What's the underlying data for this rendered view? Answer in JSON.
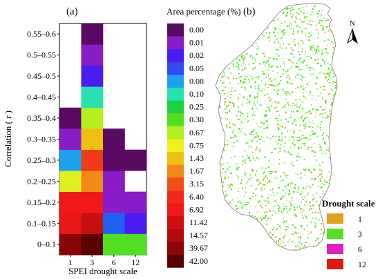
{
  "figure": {
    "panel_a_label": "(a)",
    "panel_b_label": "(b)"
  },
  "chart_data": [
    {
      "type": "heatmap",
      "panel": "(a)",
      "xlabel": "SPEI drought scale",
      "ylabel": "Correlation ( r )",
      "x_categories": [
        "1",
        "3",
        "6",
        "12"
      ],
      "y_categories": [
        "0–0.1",
        "0.1–0.15",
        "0.15–0.2",
        "0.2–0.25",
        "0.25–0.3",
        "0.3–0.35",
        "0.35–0.4",
        "0.4–0.45",
        "0.45–0.5",
        "0.5–0.55",
        "0.55–0.6"
      ],
      "colorbar_title": "Area percentage (%)",
      "colorbar_levels": [
        "0.00",
        "0.01",
        "0.02",
        "0.05",
        "0.08",
        "0.10",
        "0.25",
        "0.30",
        "0.67",
        "0.75",
        "1.43",
        "1.67",
        "3.15",
        "6.40",
        "6.92",
        "11.42",
        "14.57",
        "39.67",
        "42.00"
      ],
      "colorbar_colors": [
        "#5b0a63",
        "#8a1cc8",
        "#4a1cf0",
        "#2f4cf0",
        "#1ea0f0",
        "#28e0b0",
        "#20d040",
        "#50e020",
        "#b4f020",
        "#f0f020",
        "#f0c010",
        "#f08a18",
        "#f05018",
        "#f02a18",
        "#f01818",
        "#d01010",
        "#b00a0a",
        "#8a0606",
        "#5a0000"
      ],
      "cells": [
        {
          "x": "1",
          "y": "0–0.1",
          "color": "#8a0606"
        },
        {
          "x": "3",
          "y": "0–0.1",
          "color": "#5a0000"
        },
        {
          "x": "6",
          "y": "0–0.1",
          "color": "#50e020"
        },
        {
          "x": "12",
          "y": "0–0.1",
          "color": "#50e020"
        },
        {
          "x": "1",
          "y": "0.1–0.15",
          "color": "#e81818"
        },
        {
          "x": "3",
          "y": "0.1–0.15",
          "color": "#c41010"
        },
        {
          "x": "6",
          "y": "0.1–0.15",
          "color": "#2060f0"
        },
        {
          "x": "12",
          "y": "0.1–0.15",
          "color": "#4a1cf0"
        },
        {
          "x": "1",
          "y": "0.15–0.2",
          "color": "#f01818"
        },
        {
          "x": "3",
          "y": "0.15–0.2",
          "color": "#f01818"
        },
        {
          "x": "6",
          "y": "0.15–0.2",
          "color": "#8a1cc8"
        },
        {
          "x": "12",
          "y": "0.15–0.2",
          "color": "#8a1cc8"
        },
        {
          "x": "1",
          "y": "0.2–0.25",
          "color": "#dff020"
        },
        {
          "x": "3",
          "y": "0.2–0.25",
          "color": "#f08a18"
        },
        {
          "x": "6",
          "y": "0.2–0.25",
          "color": "#8a1cc8"
        },
        {
          "x": "1",
          "y": "0.25–0.3",
          "color": "#1ea0f0"
        },
        {
          "x": "3",
          "y": "0.25–0.3",
          "color": "#f03a18"
        },
        {
          "x": "6",
          "y": "0.25–0.3",
          "color": "#5b0a63"
        },
        {
          "x": "12",
          "y": "0.25–0.3",
          "color": "#5b0a63"
        },
        {
          "x": "1",
          "y": "0.3–0.35",
          "color": "#8a1cc8"
        },
        {
          "x": "3",
          "y": "0.3–0.35",
          "color": "#f0c010"
        },
        {
          "x": "6",
          "y": "0.3–0.35",
          "color": "#5b0a63"
        },
        {
          "x": "1",
          "y": "0.35–0.4",
          "color": "#5b0a63"
        },
        {
          "x": "3",
          "y": "0.35–0.4",
          "color": "#b4f020"
        },
        {
          "x": "3",
          "y": "0.4–0.45",
          "color": "#28e0b0"
        },
        {
          "x": "3",
          "y": "0.45–0.5",
          "color": "#4a1cf0"
        },
        {
          "x": "3",
          "y": "0.5–0.55",
          "color": "#8a1cc8"
        },
        {
          "x": "3",
          "y": "0.55–0.6",
          "color": "#5b0a63"
        }
      ]
    },
    {
      "type": "map",
      "panel": "(b)",
      "north_label": "N",
      "legend_title": "Drought scale",
      "legend": [
        {
          "label": "1",
          "color": "#e0a21a"
        },
        {
          "label": "3",
          "color": "#56e020"
        },
        {
          "label": "6",
          "color": "#e020c0"
        },
        {
          "label": "12",
          "color": "#e01810"
        }
      ]
    }
  ]
}
